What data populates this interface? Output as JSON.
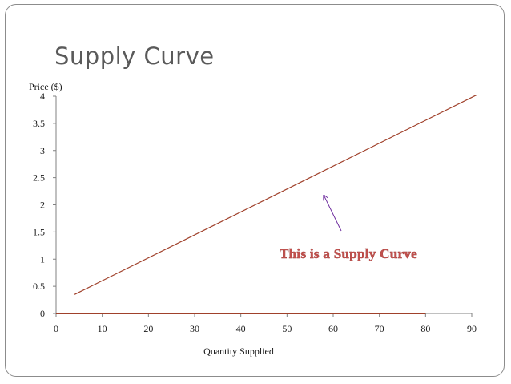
{
  "slide": {
    "title": "Supply Curve"
  },
  "chart_data": {
    "type": "line",
    "title": "",
    "xlabel": "Quantity Supplied",
    "ylabel": "Price ($)",
    "xlim": [
      0,
      90
    ],
    "ylim": [
      0,
      4
    ],
    "x_ticks": [
      "0",
      "10",
      "20",
      "30",
      "40",
      "50",
      "60",
      "70",
      "80",
      "90"
    ],
    "y_ticks": [
      "0",
      "0.5",
      "1",
      "1.5",
      "2",
      "2.5",
      "3",
      "3.5",
      "4"
    ],
    "grid": false,
    "legend": "none",
    "series": [
      {
        "x": [
          4,
          91
        ],
        "y": [
          0.35,
          4.02
        ],
        "color": "#a0412b"
      },
      {
        "x": [
          0,
          80
        ],
        "y": [
          0,
          0
        ],
        "color": "#a0412b"
      }
    ],
    "annotations": [
      {
        "text": "This is a Supply Curve",
        "color": "#c0504d",
        "arrow_to": {
          "x": 58,
          "y": 2.17
        },
        "arrow_color": "#7030a0"
      }
    ]
  }
}
